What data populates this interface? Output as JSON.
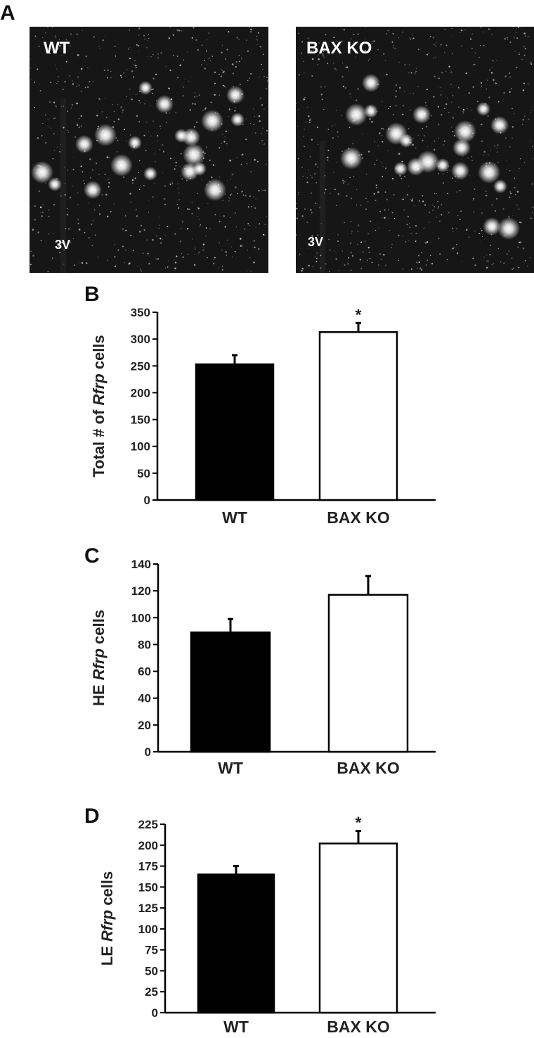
{
  "panel_a": {
    "letter": "A",
    "images": [
      {
        "label": "WT",
        "region": "3V"
      },
      {
        "label": "BAX KO",
        "region": "3V"
      }
    ]
  },
  "chart_data": [
    {
      "type": "bar",
      "panel": "B",
      "ylabel_parts": [
        "Total # of ",
        "Rfrp",
        " cells"
      ],
      "categories": [
        "WT",
        "BAX KO"
      ],
      "values": [
        253,
        313
      ],
      "errors": [
        17,
        17
      ],
      "colors": [
        "#000000",
        "#ffffff"
      ],
      "annotations": [
        null,
        "*"
      ],
      "ylim": [
        0,
        350
      ],
      "yticks": [
        0,
        50,
        100,
        150,
        200,
        250,
        300,
        350
      ]
    },
    {
      "type": "bar",
      "panel": "C",
      "ylabel_parts": [
        "HE ",
        "Rfrp",
        " cells"
      ],
      "categories": [
        "WT",
        "BAX KO"
      ],
      "values": [
        89,
        117
      ],
      "errors": [
        10,
        14
      ],
      "colors": [
        "#000000",
        "#ffffff"
      ],
      "annotations": [
        null,
        null
      ],
      "ylim": [
        0,
        140
      ],
      "yticks": [
        0,
        20,
        40,
        60,
        80,
        100,
        120,
        140
      ]
    },
    {
      "type": "bar",
      "panel": "D",
      "ylabel_parts": [
        "LE ",
        "Rfrp",
        " cells"
      ],
      "categories": [
        "WT",
        "BAX KO"
      ],
      "values": [
        165,
        202
      ],
      "errors": [
        10,
        15
      ],
      "colors": [
        "#000000",
        "#ffffff"
      ],
      "annotations": [
        null,
        "*"
      ],
      "ylim": [
        0,
        225
      ],
      "yticks": [
        0,
        25,
        50,
        75,
        100,
        125,
        150,
        175,
        200,
        225
      ]
    }
  ]
}
